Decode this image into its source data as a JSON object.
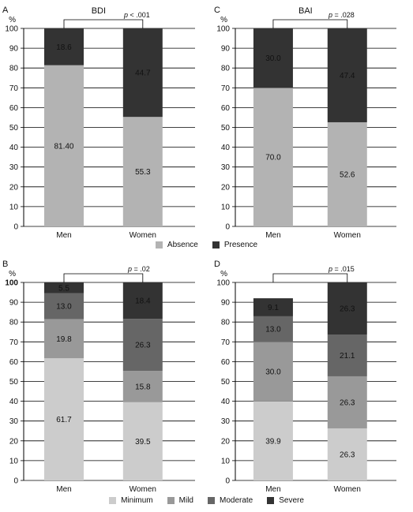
{
  "legends": {
    "top": [
      {
        "label": "Absence",
        "color": "#b3b3b3"
      },
      {
        "label": "Presence",
        "color": "#333333"
      }
    ],
    "bottom": [
      {
        "label": "Minimum",
        "color": "#cccccc"
      },
      {
        "label": "Mild",
        "color": "#999999"
      },
      {
        "label": "Moderate",
        "color": "#666666"
      },
      {
        "label": "Severe",
        "color": "#333333"
      }
    ]
  },
  "chart_data": [
    {
      "type": "bar",
      "stacked": true,
      "panel": "A",
      "title": "BDI",
      "pvalue": "p < .001",
      "ylabel": "%",
      "ylim": [
        0,
        100
      ],
      "yticks": [
        0,
        10,
        20,
        30,
        40,
        50,
        60,
        70,
        80,
        90,
        100
      ],
      "categories": [
        "Men",
        "Women"
      ],
      "grid": true,
      "series": [
        {
          "name": "Absence",
          "color": "#b3b3b3",
          "values": [
            81.4,
            55.3
          ],
          "labels": [
            "81.40",
            "55.3"
          ]
        },
        {
          "name": "Presence",
          "color": "#333333",
          "values": [
            18.6,
            44.7
          ],
          "labels": [
            "18.6",
            "44.7"
          ]
        }
      ]
    },
    {
      "type": "bar",
      "stacked": true,
      "panel": "C",
      "title": "BAI",
      "pvalue": "p = .028",
      "ylabel": "%",
      "ylim": [
        0,
        100
      ],
      "yticks": [
        0,
        10,
        20,
        30,
        40,
        50,
        60,
        70,
        80,
        90,
        100
      ],
      "categories": [
        "Men",
        "Women"
      ],
      "grid": true,
      "series": [
        {
          "name": "Absence",
          "color": "#b3b3b3",
          "values": [
            70.0,
            52.6
          ],
          "labels": [
            "70.0",
            "52.6"
          ]
        },
        {
          "name": "Presence",
          "color": "#333333",
          "values": [
            30.0,
            47.4
          ],
          "labels": [
            "30.0",
            "47.4"
          ]
        }
      ]
    },
    {
      "type": "bar",
      "stacked": true,
      "panel": "B",
      "title": "",
      "pvalue": "p = .02",
      "ylabel": "%",
      "ylim": [
        0,
        100
      ],
      "yticks": [
        0,
        10,
        20,
        30,
        40,
        50,
        60,
        70,
        80,
        90,
        100
      ],
      "categories": [
        "Men",
        "Women"
      ],
      "grid": true,
      "series": [
        {
          "name": "Minimum",
          "color": "#cccccc",
          "values": [
            61.7,
            39.5
          ],
          "labels": [
            "61.7",
            "39.5"
          ]
        },
        {
          "name": "Mild",
          "color": "#999999",
          "values": [
            19.8,
            15.8
          ],
          "labels": [
            "19.8",
            "15.8"
          ]
        },
        {
          "name": "Moderate",
          "color": "#666666",
          "values": [
            13.0,
            26.3
          ],
          "labels": [
            "13.0",
            "26.3"
          ]
        },
        {
          "name": "Severe",
          "color": "#333333",
          "values": [
            5.5,
            18.4
          ],
          "labels": [
            "5.5",
            "18.4"
          ]
        }
      ]
    },
    {
      "type": "bar",
      "stacked": true,
      "panel": "D",
      "title": "",
      "pvalue": "p = .015",
      "ylabel": "%",
      "ylim": [
        0,
        100
      ],
      "yticks": [
        0,
        10,
        20,
        30,
        40,
        50,
        60,
        70,
        80,
        90,
        100
      ],
      "categories": [
        "Men",
        "Women"
      ],
      "grid": true,
      "series": [
        {
          "name": "Minimum",
          "color": "#cccccc",
          "values": [
            39.9,
            26.3
          ],
          "labels": [
            "39.9",
            "26.3"
          ]
        },
        {
          "name": "Mild",
          "color": "#999999",
          "values": [
            30.0,
            26.3
          ],
          "labels": [
            "30.0",
            "26.3"
          ]
        },
        {
          "name": "Moderate",
          "color": "#666666",
          "values": [
            13.0,
            21.1
          ],
          "labels": [
            "13.0",
            "21.1"
          ]
        },
        {
          "name": "Severe",
          "color": "#333333",
          "values": [
            9.1,
            26.3
          ],
          "labels": [
            "9.1",
            "26.3"
          ]
        }
      ]
    }
  ]
}
